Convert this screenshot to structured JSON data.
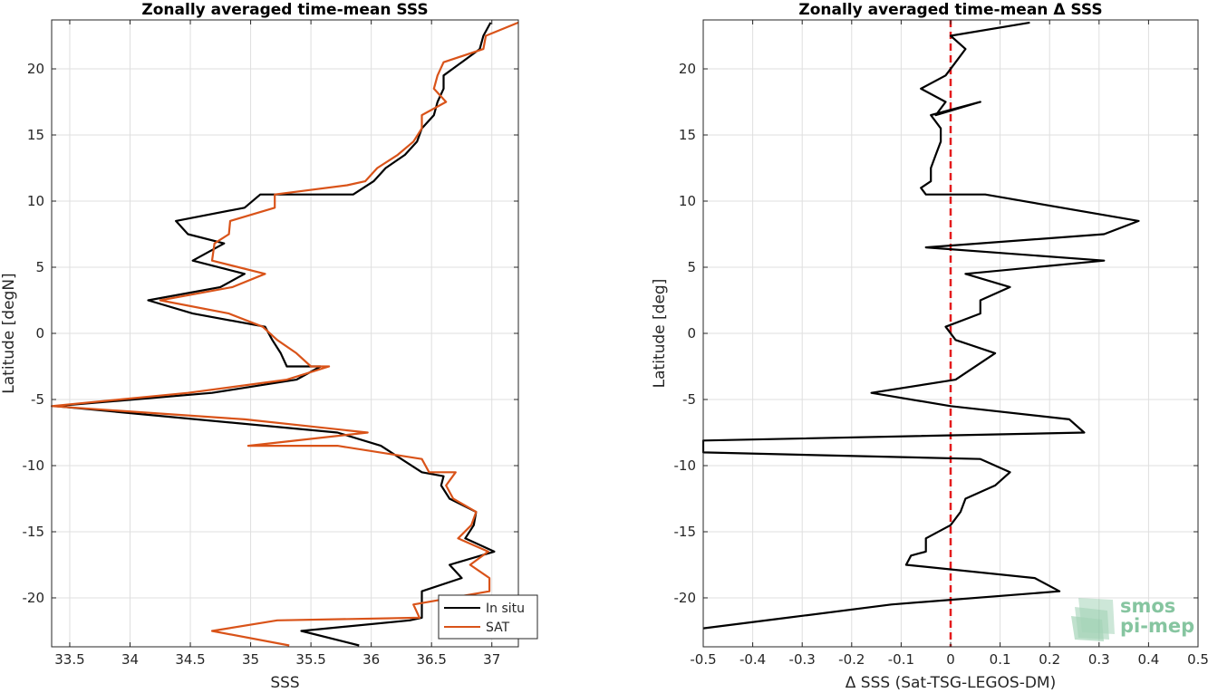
{
  "chart_data": [
    {
      "type": "line",
      "title": "Zonally averaged time-mean SSS",
      "xlabel": "SSS",
      "ylabel": "Latitude [degN]",
      "xlim": [
        33.35,
        37.22
      ],
      "ylim": [
        -23.7,
        23.7
      ],
      "xticks": [
        33.5,
        34,
        34.5,
        35,
        35.5,
        36,
        36.5,
        37
      ],
      "xtick_labels": [
        "33.5",
        "34",
        "34.5",
        "35",
        "35.5",
        "36",
        "36.5",
        "37"
      ],
      "yticks": [
        -20,
        -15,
        -10,
        -5,
        0,
        5,
        10,
        15,
        20
      ],
      "ytick_labels": [
        "-20",
        "-15",
        "-10",
        "-5",
        "0",
        "5",
        "10",
        "15",
        "20"
      ],
      "grid": true,
      "legend_position": "bottom-right",
      "series": [
        {
          "name": "In situ",
          "color": "#000000",
          "points": [
            [
              36.99,
              23.5
            ],
            [
              36.93,
              22.5
            ],
            [
              36.9,
              21.5
            ],
            [
              36.75,
              20.5
            ],
            [
              36.6,
              19.5
            ],
            [
              36.6,
              18.5
            ],
            [
              36.55,
              17.5
            ],
            [
              36.52,
              16.5
            ],
            [
              36.42,
              15.5
            ],
            [
              36.38,
              14.5
            ],
            [
              36.28,
              13.5
            ],
            [
              36.12,
              12.5
            ],
            [
              36.02,
              11.5
            ],
            [
              35.85,
              10.5
            ],
            [
              35.08,
              10.5
            ],
            [
              34.95,
              9.5
            ],
            [
              34.38,
              8.5
            ],
            [
              34.48,
              7.5
            ],
            [
              34.78,
              6.8
            ],
            [
              34.52,
              5.5
            ],
            [
              34.95,
              4.5
            ],
            [
              34.75,
              3.5
            ],
            [
              34.15,
              2.5
            ],
            [
              34.52,
              1.5
            ],
            [
              35.12,
              0.5
            ],
            [
              35.18,
              -0.5
            ],
            [
              35.25,
              -1.5
            ],
            [
              35.3,
              -2.5
            ],
            [
              35.58,
              -2.5
            ],
            [
              35.38,
              -3.5
            ],
            [
              34.68,
              -4.5
            ],
            [
              33.38,
              -5.5
            ],
            [
              35.72,
              -7.5
            ],
            [
              36.08,
              -8.5
            ],
            [
              36.42,
              -10.5
            ],
            [
              36.6,
              -10.8
            ],
            [
              36.58,
              -11.5
            ],
            [
              36.65,
              -12.5
            ],
            [
              36.87,
              -13.5
            ],
            [
              36.85,
              -14.5
            ],
            [
              36.78,
              -15.5
            ],
            [
              37.02,
              -16.5
            ],
            [
              36.65,
              -17.5
            ],
            [
              36.75,
              -18.5
            ],
            [
              36.42,
              -19.5
            ],
            [
              36.42,
              -21.5
            ],
            [
              36.32,
              -21.7
            ],
            [
              35.42,
              -22.5
            ],
            [
              35.42,
              -22.5
            ],
            [
              35.9,
              -23.6
            ]
          ]
        },
        {
          "name": "SAT",
          "color": "#d95319",
          "points": [
            [
              37.22,
              23.5
            ],
            [
              36.95,
              22.5
            ],
            [
              36.93,
              21.5
            ],
            [
              36.6,
              20.5
            ],
            [
              36.55,
              19.5
            ],
            [
              36.52,
              18.5
            ],
            [
              36.62,
              17.5
            ],
            [
              36.42,
              16.5
            ],
            [
              36.42,
              15.5
            ],
            [
              36.35,
              14.5
            ],
            [
              36.22,
              13.5
            ],
            [
              36.05,
              12.5
            ],
            [
              35.95,
              11.5
            ],
            [
              35.8,
              11.2
            ],
            [
              35.2,
              10.5
            ],
            [
              35.2,
              9.5
            ],
            [
              34.83,
              8.5
            ],
            [
              34.82,
              7.5
            ],
            [
              34.7,
              6.8
            ],
            [
              34.68,
              5.5
            ],
            [
              35.12,
              4.5
            ],
            [
              34.85,
              3.5
            ],
            [
              34.25,
              2.5
            ],
            [
              34.82,
              1.5
            ],
            [
              35.1,
              0.5
            ],
            [
              35.22,
              -0.5
            ],
            [
              35.38,
              -1.5
            ],
            [
              35.5,
              -2.5
            ],
            [
              35.65,
              -2.5
            ],
            [
              35.3,
              -3.5
            ],
            [
              34.48,
              -4.5
            ],
            [
              33.35,
              -5.5
            ],
            [
              34.95,
              -6.5
            ],
            [
              35.97,
              -7.5
            ],
            [
              34.98,
              -8.5
            ],
            [
              35.72,
              -8.5
            ],
            [
              36.42,
              -9.5
            ],
            [
              36.48,
              -10.5
            ],
            [
              36.7,
              -10.5
            ],
            [
              36.62,
              -11.5
            ],
            [
              36.68,
              -12.5
            ],
            [
              36.87,
              -13.5
            ],
            [
              36.83,
              -14.5
            ],
            [
              36.72,
              -15.5
            ],
            [
              36.97,
              -16.5
            ],
            [
              36.82,
              -17.5
            ],
            [
              36.98,
              -18.5
            ],
            [
              36.98,
              -19.5
            ],
            [
              36.35,
              -20.5
            ],
            [
              36.4,
              -21.5
            ],
            [
              35.22,
              -21.7
            ],
            [
              34.68,
              -22.5
            ],
            [
              35.32,
              -23.6
            ]
          ]
        }
      ]
    },
    {
      "type": "line",
      "title": "Zonally averaged time-mean Δ SSS",
      "xlabel": "Δ SSS (Sat-TSG-LEGOS-DM)",
      "ylabel": "Latitude [deg]",
      "xlim": [
        -0.5,
        0.5
      ],
      "ylim": [
        -23.7,
        23.7
      ],
      "xticks": [
        -0.5,
        -0.4,
        -0.3,
        -0.2,
        -0.1,
        0,
        0.1,
        0.2,
        0.3,
        0.4,
        0.5
      ],
      "xtick_labels": [
        "-0.5",
        "-0.4",
        "-0.3",
        "-0.2",
        "-0.1",
        "0",
        "0.1",
        "0.2",
        "0.3",
        "0.4",
        "0.5"
      ],
      "yticks": [
        -20,
        -15,
        -10,
        -5,
        0,
        5,
        10,
        15,
        20
      ],
      "ytick_labels": [
        "-20",
        "-15",
        "-10",
        "-5",
        "0",
        "5",
        "10",
        "15",
        "20"
      ],
      "grid": true,
      "reference_line": {
        "x": 0,
        "color": "#e41a1c",
        "style": "dashed"
      },
      "series": [
        {
          "color": "#000000",
          "points": [
            [
              0.16,
              23.5
            ],
            [
              0,
              22.5
            ],
            [
              0.03,
              21.5
            ],
            [
              0.01,
              20.5
            ],
            [
              -0.01,
              19.5
            ],
            [
              -0.06,
              18.5
            ],
            [
              -0.01,
              17.5
            ],
            [
              -0.03,
              16.5
            ],
            [
              0.06,
              17.5
            ],
            [
              -0.04,
              16.5
            ],
            [
              -0.02,
              15.5
            ],
            [
              -0.02,
              14.5
            ],
            [
              -0.03,
              13.5
            ],
            [
              -0.04,
              12.5
            ],
            [
              -0.04,
              11.5
            ],
            [
              -0.06,
              11.0
            ],
            [
              -0.05,
              10.5
            ],
            [
              0.07,
              10.5
            ],
            [
              0.38,
              8.5
            ],
            [
              0.31,
              7.5
            ],
            [
              -0.05,
              6.5
            ],
            [
              0.31,
              5.5
            ],
            [
              0.03,
              4.5
            ],
            [
              0.12,
              3.5
            ],
            [
              0.06,
              2.5
            ],
            [
              0.06,
              1.5
            ],
            [
              -0.01,
              0.5
            ],
            [
              0.01,
              -0.5
            ],
            [
              0.09,
              -1.5
            ],
            [
              0.01,
              -3.5
            ],
            [
              -0.16,
              -4.5
            ],
            [
              0,
              -5.5
            ],
            [
              0.24,
              -6.5
            ],
            [
              0.27,
              -7.5
            ],
            [
              -0.5,
              -8.1
            ],
            [
              -0.5,
              -9
            ],
            [
              0.06,
              -9.5
            ],
            [
              0.12,
              -10.5
            ],
            [
              0.09,
              -11.5
            ],
            [
              0.03,
              -12.5
            ],
            [
              0.02,
              -13.5
            ],
            [
              0,
              -14.5
            ],
            [
              -0.05,
              -15.5
            ],
            [
              -0.05,
              -16.5
            ],
            [
              -0.08,
              -16.8
            ],
            [
              -0.09,
              -17.5
            ],
            [
              0.17,
              -18.5
            ],
            [
              0.22,
              -19.5
            ],
            [
              -0.12,
              -20.5
            ],
            [
              -0.33,
              -21.5
            ],
            [
              -0.5,
              -22.3
            ]
          ]
        }
      ]
    }
  ],
  "legend": {
    "items": [
      {
        "label": "In situ",
        "color": "#000000"
      },
      {
        "label": "SAT",
        "color": "#d95319"
      }
    ]
  },
  "logo": {
    "line1": "smos",
    "line2": "pi-mep",
    "color": "#86c5a0"
  }
}
